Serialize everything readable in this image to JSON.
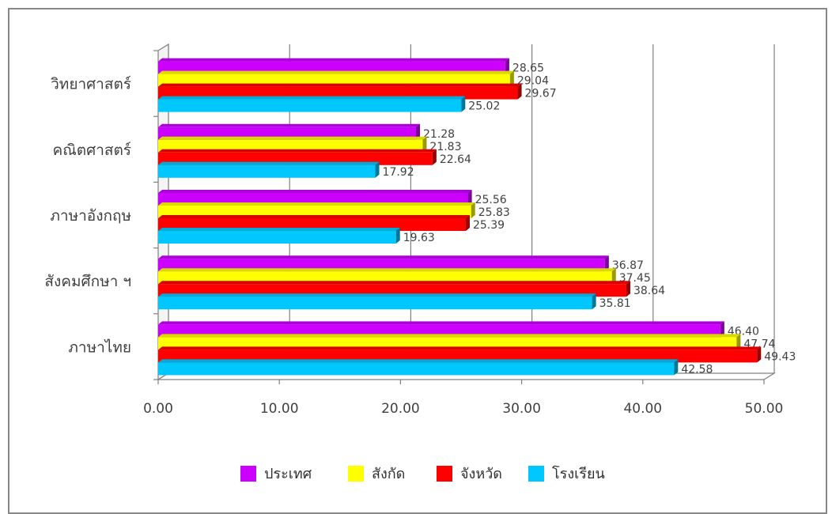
{
  "chart_data": {
    "type": "bar",
    "orientation": "horizontal",
    "categories": [
      "วิทยาศาสตร์",
      "คณิตศาสตร์",
      "ภาษาอังกฤษ",
      "สังคมศึกษา ฯ",
      "ภาษาไทย"
    ],
    "series": [
      {
        "name": "ประเทศ",
        "color": "#CC00FF",
        "values": [
          28.65,
          21.28,
          25.56,
          36.87,
          46.4
        ]
      },
      {
        "name": "สังกัด",
        "color": "#FFFF00",
        "values": [
          29.04,
          21.83,
          25.83,
          37.45,
          47.74
        ]
      },
      {
        "name": "จังหวัด",
        "color": "#FF0000",
        "values": [
          29.67,
          22.64,
          25.39,
          38.64,
          49.43
        ]
      },
      {
        "name": "โรงเรียน",
        "color": "#00C8FF",
        "values": [
          25.02,
          17.92,
          19.63,
          35.81,
          42.58
        ]
      }
    ],
    "xlim": [
      0,
      50
    ],
    "xticks": [
      "0.00",
      "10.00",
      "20.00",
      "30.00",
      "40.00",
      "50.00"
    ],
    "grid": "vertical",
    "legend_position": "bottom",
    "title": "",
    "xlabel": "",
    "ylabel": ""
  }
}
